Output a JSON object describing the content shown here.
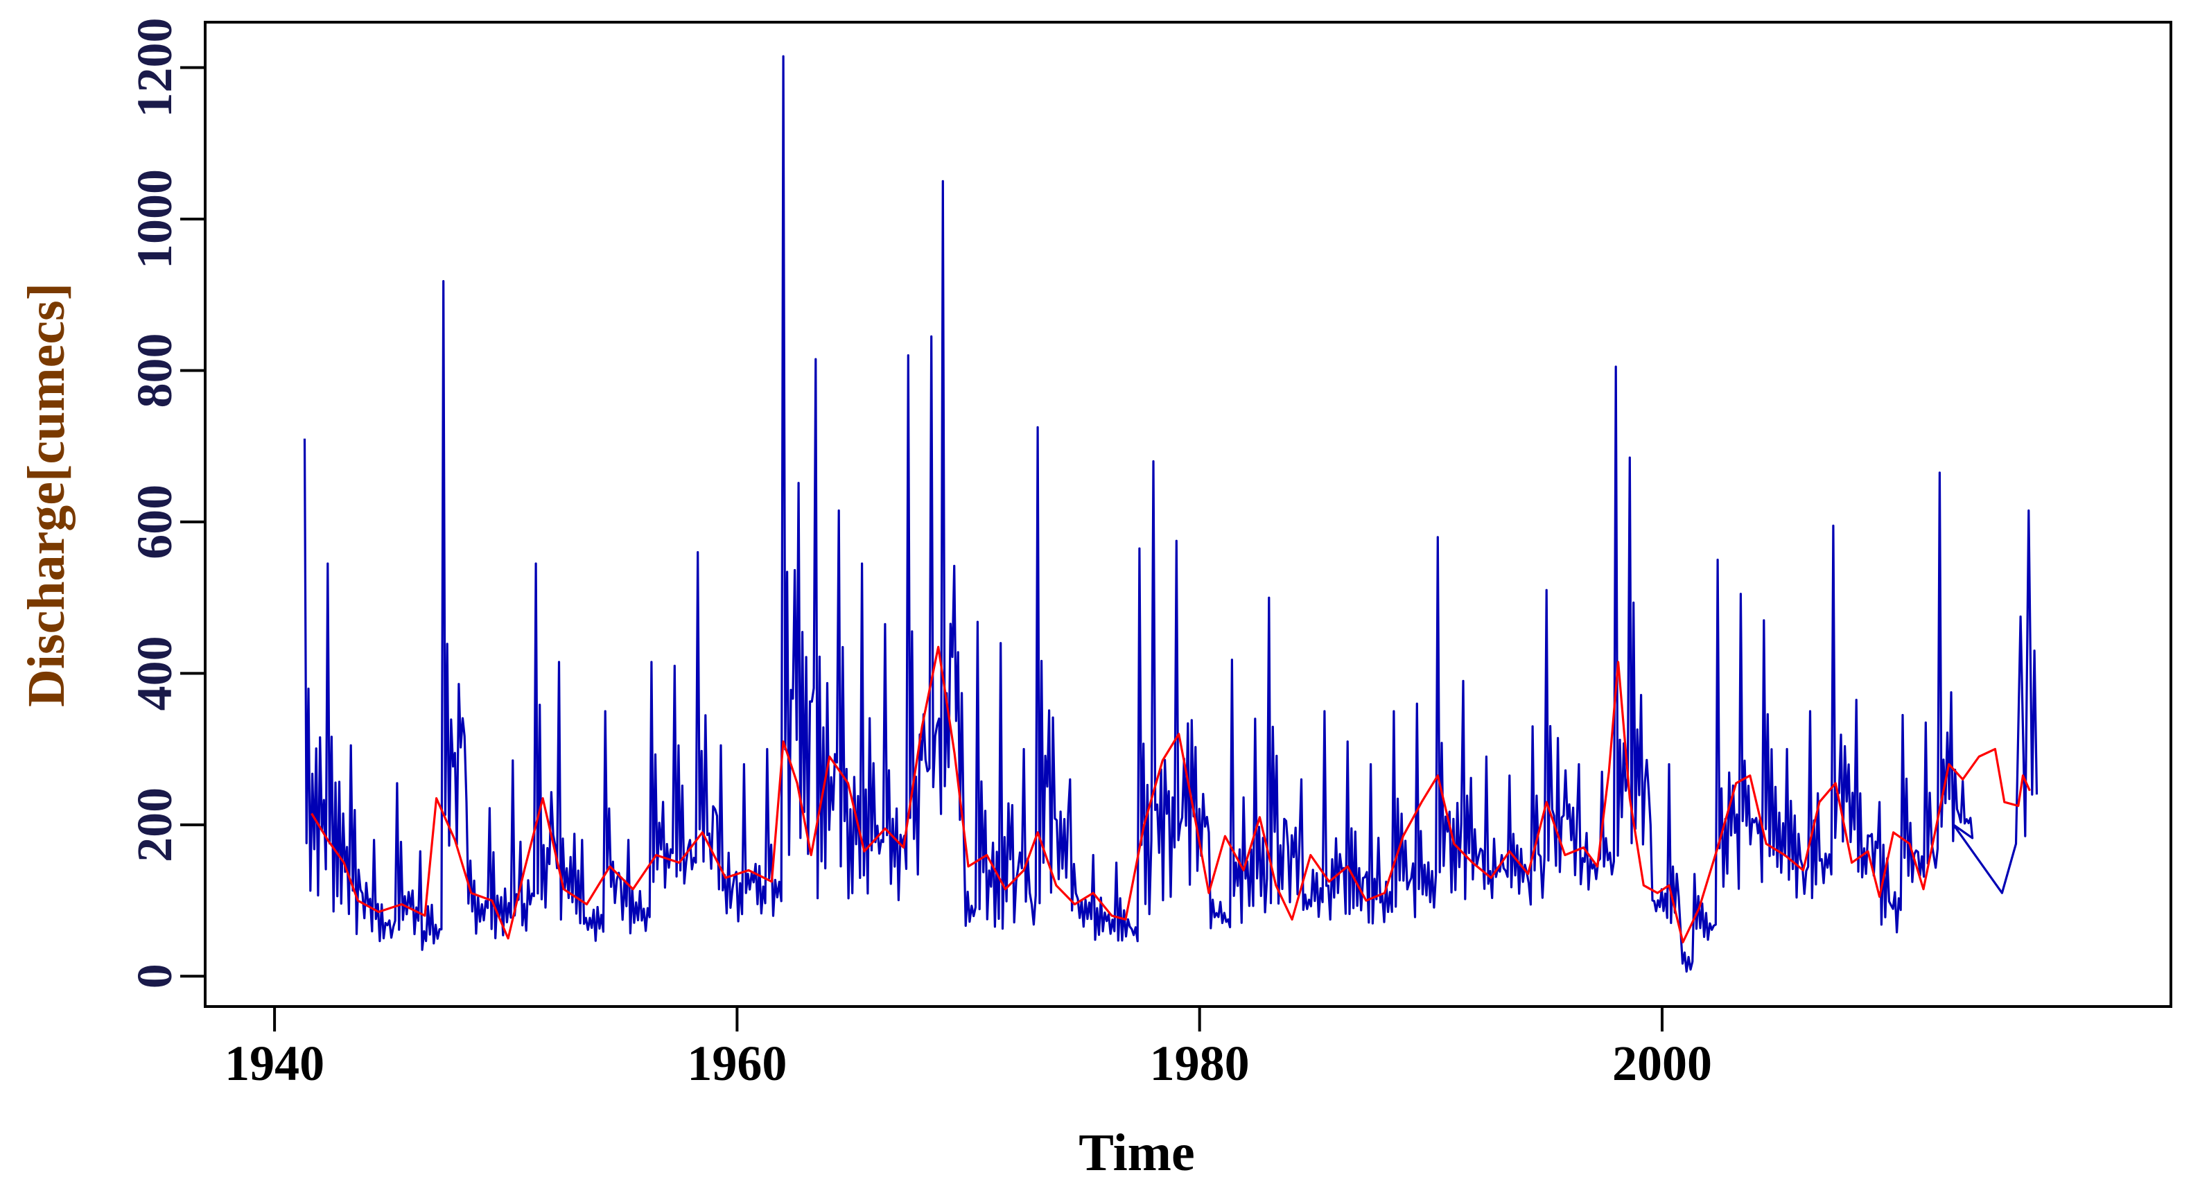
{
  "chart_data": {
    "type": "line",
    "title": "",
    "xlabel": "Time",
    "ylabel": "Discharge[cumecs]",
    "xlim": [
      1937,
      2022
    ],
    "ylim": [
      -40,
      1260
    ],
    "x_ticks": [
      1940,
      1960,
      1980,
      2000
    ],
    "y_ticks": [
      0,
      200,
      400,
      600,
      800,
      1000,
      1200
    ],
    "grid": false,
    "legend": "none",
    "colors": {
      "observed": "#0000b4",
      "smoothed": "#ff0000",
      "xlabel": "#000000",
      "ylabel": "#7a3a00",
      "ytick": "#1a1a4a"
    },
    "series": [
      {
        "key": "observed",
        "style": "monthly oscillation between yearly low and yearly peak",
        "annual": [
          [
            1941.3,
            710,
            40
          ],
          [
            1942.3,
            545,
            35
          ],
          [
            1943.3,
            305,
            25
          ],
          [
            1944.3,
            180,
            25
          ],
          [
            1945.3,
            255,
            30
          ],
          [
            1946.3,
            165,
            20
          ],
          [
            1947.3,
            918,
            45
          ],
          [
            1948.3,
            230,
            40
          ],
          [
            1949.3,
            222,
            35
          ],
          [
            1950.3,
            285,
            30
          ],
          [
            1951.3,
            545,
            40
          ],
          [
            1952.3,
            415,
            40
          ],
          [
            1953.3,
            180,
            35
          ],
          [
            1954.3,
            350,
            45
          ],
          [
            1955.3,
            180,
            45
          ],
          [
            1956.3,
            415,
            50
          ],
          [
            1957.3,
            410,
            55
          ],
          [
            1958.3,
            560,
            55
          ],
          [
            1959.3,
            305,
            50
          ],
          [
            1960.3,
            280,
            55
          ],
          [
            1961.3,
            300,
            55
          ],
          [
            1962.0,
            1215,
            60
          ],
          [
            1963.4,
            815,
            35
          ],
          [
            1964.4,
            615,
            45
          ],
          [
            1965.4,
            545,
            50
          ],
          [
            1966.4,
            465,
            55
          ],
          [
            1967.4,
            820,
            45
          ],
          [
            1968.4,
            845,
            110
          ],
          [
            1968.9,
            1050,
            120
          ],
          [
            1969.8,
            190,
            50
          ],
          [
            1970.4,
            468,
            30
          ],
          [
            1971.4,
            440,
            20
          ],
          [
            1972.4,
            300,
            25
          ],
          [
            1973.0,
            725,
            30
          ],
          [
            1974.4,
            260,
            40
          ],
          [
            1975.4,
            160,
            35
          ],
          [
            1976.4,
            150,
            30
          ],
          [
            1977.4,
            565,
            25
          ],
          [
            1978.0,
            680,
            50
          ],
          [
            1979.0,
            575,
            70
          ],
          [
            1980.4,
            190,
            35
          ],
          [
            1981.4,
            418,
            40
          ],
          [
            1982.4,
            340,
            55
          ],
          [
            1983.0,
            500,
            60
          ],
          [
            1984.4,
            260,
            45
          ],
          [
            1985.4,
            350,
            40
          ],
          [
            1986.4,
            310,
            50
          ],
          [
            1987.4,
            280,
            30
          ],
          [
            1988.4,
            350,
            45
          ],
          [
            1989.4,
            360,
            55
          ],
          [
            1990.3,
            580,
            60
          ],
          [
            1991.4,
            390,
            70
          ],
          [
            1992.4,
            290,
            80
          ],
          [
            1993.4,
            265,
            75
          ],
          [
            1994.4,
            330,
            80
          ],
          [
            1995.0,
            510,
            90
          ],
          [
            1996.4,
            280,
            100
          ],
          [
            1997.4,
            270,
            110
          ],
          [
            1998.0,
            805,
            80
          ],
          [
            1998.6,
            685,
            95
          ],
          [
            1999.5,
            200,
            60
          ],
          [
            2000.3,
            280,
            40
          ],
          [
            2000.8,
            60,
            0
          ],
          [
            2001.4,
            135,
            40
          ],
          [
            2002.4,
            550,
            60
          ],
          [
            2003.4,
            505,
            80
          ],
          [
            2004.4,
            470,
            90
          ],
          [
            2005.4,
            300,
            85
          ],
          [
            2006.4,
            350,
            80
          ],
          [
            2007.4,
            595,
            110
          ],
          [
            2008.4,
            365,
            100
          ],
          [
            2009.4,
            230,
            40
          ],
          [
            2010.4,
            345,
            90
          ],
          [
            2011.4,
            335,
            100
          ],
          [
            2012.0,
            665,
            120
          ],
          [
            2012.5,
            375,
            150
          ]
        ],
        "gap_segment": [
          [
            2012.6,
            200
          ],
          [
            2014.7,
            110
          ],
          [
            2015.3,
            175
          ]
        ],
        "tail": [
          [
            2015.3,
            175
          ],
          [
            2015.5,
            475
          ],
          [
            2015.7,
            185
          ],
          [
            2015.85,
            615
          ],
          [
            2016.0,
            240
          ],
          [
            2016.1,
            430
          ],
          [
            2016.2,
            240
          ]
        ]
      },
      {
        "key": "smoothed",
        "points": [
          [
            1941.6,
            215
          ],
          [
            1942.3,
            180
          ],
          [
            1943.0,
            150
          ],
          [
            1943.6,
            100
          ],
          [
            1944.5,
            85
          ],
          [
            1945.5,
            95
          ],
          [
            1946.5,
            80
          ],
          [
            1947.0,
            235
          ],
          [
            1947.8,
            180
          ],
          [
            1948.5,
            110
          ],
          [
            1949.4,
            100
          ],
          [
            1950.1,
            50
          ],
          [
            1950.8,
            140
          ],
          [
            1951.6,
            235
          ],
          [
            1952.5,
            115
          ],
          [
            1953.5,
            95
          ],
          [
            1954.5,
            145
          ],
          [
            1955.5,
            115
          ],
          [
            1956.5,
            160
          ],
          [
            1957.5,
            150
          ],
          [
            1958.5,
            190
          ],
          [
            1959.5,
            130
          ],
          [
            1960.5,
            140
          ],
          [
            1961.5,
            125
          ],
          [
            1962.0,
            310
          ],
          [
            1962.6,
            255
          ],
          [
            1963.2,
            160
          ],
          [
            1964.0,
            290
          ],
          [
            1964.8,
            255
          ],
          [
            1965.5,
            165
          ],
          [
            1966.4,
            195
          ],
          [
            1967.2,
            170
          ],
          [
            1968.0,
            330
          ],
          [
            1968.7,
            435
          ],
          [
            1969.4,
            295
          ],
          [
            1970.0,
            145
          ],
          [
            1970.8,
            160
          ],
          [
            1971.6,
            115
          ],
          [
            1972.4,
            140
          ],
          [
            1973.0,
            190
          ],
          [
            1973.8,
            120
          ],
          [
            1974.6,
            95
          ],
          [
            1975.4,
            110
          ],
          [
            1976.2,
            80
          ],
          [
            1976.8,
            75
          ],
          [
            1977.6,
            200
          ],
          [
            1978.4,
            285
          ],
          [
            1979.1,
            320
          ],
          [
            1979.7,
            225
          ],
          [
            1980.4,
            110
          ],
          [
            1981.1,
            185
          ],
          [
            1981.9,
            140
          ],
          [
            1982.6,
            210
          ],
          [
            1983.3,
            120
          ],
          [
            1984.0,
            75
          ],
          [
            1984.8,
            160
          ],
          [
            1985.6,
            125
          ],
          [
            1986.4,
            145
          ],
          [
            1987.2,
            100
          ],
          [
            1988.0,
            110
          ],
          [
            1988.8,
            185
          ],
          [
            1989.6,
            230
          ],
          [
            1990.3,
            265
          ],
          [
            1991.0,
            175
          ],
          [
            1991.8,
            150
          ],
          [
            1992.6,
            130
          ],
          [
            1993.4,
            165
          ],
          [
            1994.2,
            135
          ],
          [
            1995.0,
            230
          ],
          [
            1995.8,
            160
          ],
          [
            1996.6,
            170
          ],
          [
            1997.2,
            145
          ],
          [
            1997.7,
            270
          ],
          [
            1998.1,
            415
          ],
          [
            1998.6,
            235
          ],
          [
            1999.2,
            120
          ],
          [
            1999.8,
            110
          ],
          [
            2000.3,
            120
          ],
          [
            2000.9,
            45
          ],
          [
            2001.6,
            90
          ],
          [
            2002.4,
            170
          ],
          [
            2003.2,
            255
          ],
          [
            2003.8,
            265
          ],
          [
            2004.5,
            175
          ],
          [
            2005.3,
            160
          ],
          [
            2006.1,
            140
          ],
          [
            2006.8,
            230
          ],
          [
            2007.5,
            255
          ],
          [
            2008.2,
            150
          ],
          [
            2008.9,
            165
          ],
          [
            2009.4,
            105
          ],
          [
            2010.0,
            190
          ],
          [
            2010.7,
            175
          ],
          [
            2011.3,
            115
          ],
          [
            2011.9,
            205
          ],
          [
            2012.4,
            280
          ],
          [
            2013.0,
            260
          ],
          [
            2013.7,
            290
          ],
          [
            2014.4,
            300
          ],
          [
            2014.8,
            230
          ],
          [
            2015.4,
            225
          ],
          [
            2015.6,
            265
          ],
          [
            2015.9,
            245
          ]
        ]
      }
    ]
  }
}
